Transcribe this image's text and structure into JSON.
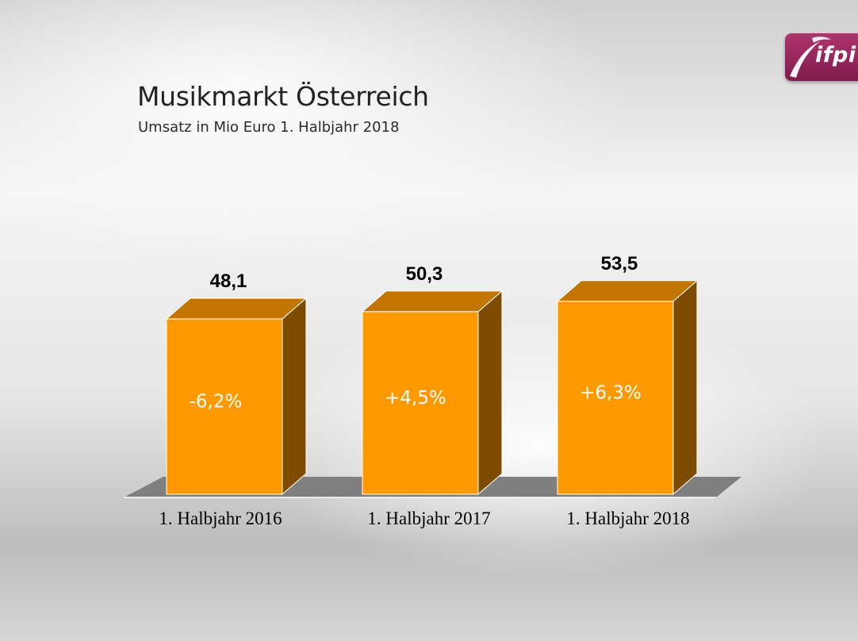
{
  "logo": {
    "text": "ifpi",
    "color": "#8e2157"
  },
  "header": {
    "title": "Musikmarkt Österreich",
    "subtitle": "Umsatz in Mio Euro 1. Halbjahr 2018"
  },
  "chart_data": {
    "type": "bar",
    "title": "Musikmarkt Österreich",
    "subtitle": "Umsatz in Mio Euro 1. Halbjahr 2018",
    "categories": [
      "1. Halbjahr 2016",
      "1. Halbjahr 2017",
      "1. Halbjahr 2018"
    ],
    "values": [
      48.1,
      50.3,
      53.5
    ],
    "value_labels": [
      "48,1",
      "50,3",
      "53,5"
    ],
    "change_labels": [
      "-6,2%",
      "+4,5%",
      "+6,3%"
    ],
    "ylim": [
      0,
      55
    ],
    "grid": false,
    "style": "3d",
    "colors": {
      "front": "#FF9900",
      "top": "#C27500",
      "side": "#7E4C00",
      "floor": "#7F7F7F"
    }
  }
}
